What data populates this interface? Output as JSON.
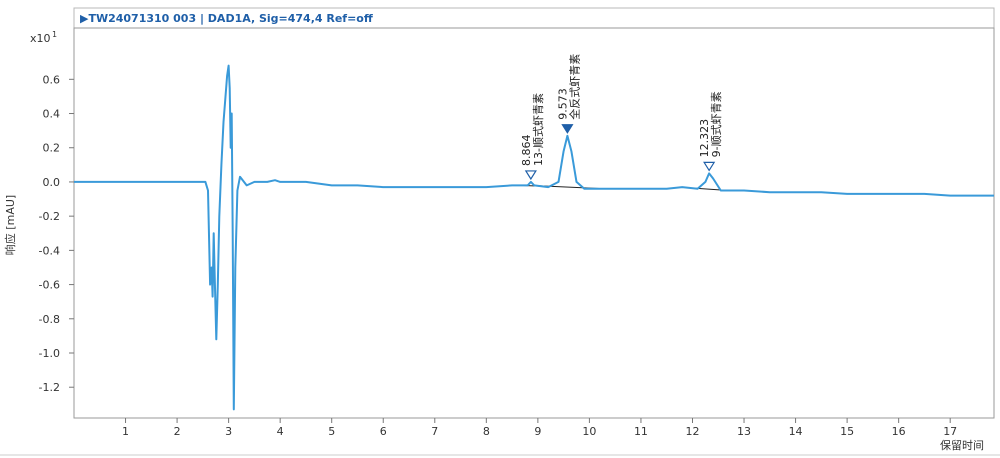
{
  "chart_data": {
    "type": "line",
    "title": "▶TW24071310 003 | DAD1A, Sig=474,4 Ref=off",
    "y_exponent_label": "x10",
    "y_exponent_power": "1",
    "ylabel": "响应 [mAU]",
    "xlabel": "保留时间",
    "xlim": [
      0,
      17.85
    ],
    "ylim": [
      -1.38,
      0.9
    ],
    "x_ticks": [
      1,
      2,
      3,
      4,
      5,
      6,
      7,
      8,
      9,
      10,
      11,
      12,
      13,
      14,
      15,
      16,
      17
    ],
    "y_ticks": [
      {
        "value": 0.6,
        "label": "0.6"
      },
      {
        "value": 0.4,
        "label": "0.4"
      },
      {
        "value": 0.2,
        "label": "0.2"
      },
      {
        "value": 0.0,
        "label": "0.0"
      },
      {
        "value": -0.2,
        "label": "-0.2"
      },
      {
        "value": -0.4,
        "label": "-0.4"
      },
      {
        "value": -0.6,
        "label": "-0.6"
      },
      {
        "value": -0.8,
        "label": "-0.8"
      },
      {
        "value": -1.0,
        "label": "-1.0"
      },
      {
        "value": -1.2,
        "label": "-1.2"
      }
    ],
    "grid": false,
    "line_color": "#3a9ad9",
    "series": [
      {
        "points": [
          [
            0.0,
            0.0
          ],
          [
            0.5,
            0.0
          ],
          [
            1.0,
            0.0
          ],
          [
            1.5,
            0.0
          ],
          [
            2.0,
            0.0
          ],
          [
            2.4,
            0.0
          ],
          [
            2.55,
            0.0
          ],
          [
            2.6,
            -0.05
          ],
          [
            2.64,
            -0.6
          ],
          [
            2.67,
            -0.5
          ],
          [
            2.69,
            -0.67
          ],
          [
            2.71,
            -0.3
          ],
          [
            2.73,
            -0.55
          ],
          [
            2.76,
            -0.92
          ],
          [
            2.79,
            -0.6
          ],
          [
            2.82,
            -0.2
          ],
          [
            2.86,
            0.1
          ],
          [
            2.9,
            0.35
          ],
          [
            2.94,
            0.5
          ],
          [
            2.97,
            0.62
          ],
          [
            3.0,
            0.68
          ],
          [
            3.02,
            0.55
          ],
          [
            3.04,
            0.2
          ],
          [
            3.06,
            0.4
          ],
          [
            3.08,
            -0.3
          ],
          [
            3.1,
            -1.33
          ],
          [
            3.13,
            -0.5
          ],
          [
            3.17,
            -0.05
          ],
          [
            3.22,
            0.03
          ],
          [
            3.35,
            -0.02
          ],
          [
            3.5,
            0.0
          ],
          [
            3.75,
            0.0
          ],
          [
            3.9,
            0.01
          ],
          [
            4.0,
            0.0
          ],
          [
            4.5,
            0.0
          ],
          [
            5.0,
            -0.02
          ],
          [
            5.5,
            -0.02
          ],
          [
            6.0,
            -0.03
          ],
          [
            6.5,
            -0.03
          ],
          [
            7.0,
            -0.03
          ],
          [
            7.5,
            -0.03
          ],
          [
            8.0,
            -0.03
          ],
          [
            8.5,
            -0.02
          ],
          [
            8.8,
            -0.02
          ],
          [
            8.864,
            0.0
          ],
          [
            8.93,
            -0.02
          ],
          [
            9.2,
            -0.03
          ],
          [
            9.4,
            0.0
          ],
          [
            9.5,
            0.18
          ],
          [
            9.573,
            0.27
          ],
          [
            9.65,
            0.18
          ],
          [
            9.75,
            0.0
          ],
          [
            9.9,
            -0.04
          ],
          [
            10.5,
            -0.04
          ],
          [
            11.0,
            -0.04
          ],
          [
            11.5,
            -0.04
          ],
          [
            11.8,
            -0.03
          ],
          [
            12.1,
            -0.04
          ],
          [
            12.25,
            0.0
          ],
          [
            12.323,
            0.05
          ],
          [
            12.4,
            0.02
          ],
          [
            12.55,
            -0.05
          ],
          [
            13.0,
            -0.05
          ],
          [
            13.5,
            -0.06
          ],
          [
            14.0,
            -0.06
          ],
          [
            14.5,
            -0.06
          ],
          [
            15.0,
            -0.07
          ],
          [
            15.5,
            -0.07
          ],
          [
            16.0,
            -0.07
          ],
          [
            16.5,
            -0.07
          ],
          [
            17.0,
            -0.08
          ],
          [
            17.5,
            -0.08
          ],
          [
            17.85,
            -0.08
          ]
        ]
      }
    ],
    "peaks": [
      {
        "rt": "8.864",
        "name": "13-顺式虾青素",
        "x": 8.864,
        "y": 0.0,
        "filled": false,
        "base": [
          8.65,
          9.05
        ]
      },
      {
        "rt": "9.573",
        "name": "全反式虾青素",
        "x": 9.573,
        "y": 0.27,
        "filled": true,
        "base": [
          9.0,
          10.3
        ]
      },
      {
        "rt": "12.323",
        "name": "9-顺式虾青素",
        "x": 12.323,
        "y": 0.05,
        "filled": false,
        "base": [
          11.95,
          12.7
        ]
      }
    ]
  }
}
